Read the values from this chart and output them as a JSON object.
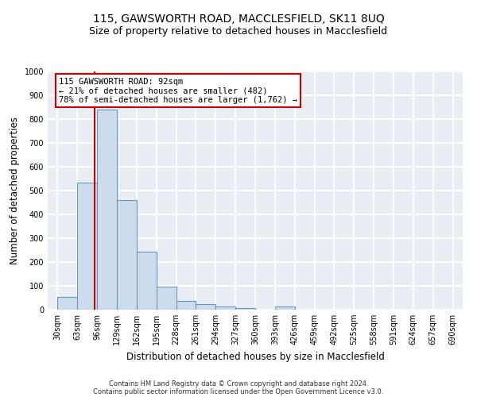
{
  "title1": "115, GAWSWORTH ROAD, MACCLESFIELD, SK11 8UQ",
  "title2": "Size of property relative to detached houses in Macclesfield",
  "xlabel": "Distribution of detached houses by size in Macclesfield",
  "ylabel": "Number of detached properties",
  "bin_edges": [
    30,
    63,
    96,
    129,
    162,
    195,
    228,
    261,
    294,
    327,
    360,
    393,
    426,
    459,
    492,
    525,
    558,
    591,
    624,
    657,
    690
  ],
  "bar_heights": [
    55,
    535,
    840,
    460,
    245,
    98,
    38,
    22,
    12,
    8,
    0,
    12,
    0,
    0,
    0,
    0,
    0,
    0,
    0,
    0
  ],
  "bar_color": "#ccdcec",
  "bar_edge_color": "#6699bb",
  "ylim": [
    0,
    1000
  ],
  "yticks": [
    0,
    100,
    200,
    300,
    400,
    500,
    600,
    700,
    800,
    900,
    1000
  ],
  "property_size": 92,
  "vline_color": "#cc0000",
  "annotation_text": "115 GAWSWORTH ROAD: 92sqm\n← 21% of detached houses are smaller (482)\n78% of semi-detached houses are larger (1,762) →",
  "annotation_box_color": "#ffffff",
  "annotation_border_color": "#cc0000",
  "footnote1": "Contains HM Land Registry data © Crown copyright and database right 2024.",
  "footnote2": "Contains public sector information licensed under the Open Government Licence v3.0.",
  "background_color": "#e8eef4",
  "grid_color": "#ffffff",
  "fig_background": "#ffffff",
  "title1_fontsize": 10,
  "title2_fontsize": 9,
  "tick_fontsize": 7,
  "ylabel_fontsize": 8.5,
  "xlabel_fontsize": 8.5,
  "annot_fontsize": 7.5
}
